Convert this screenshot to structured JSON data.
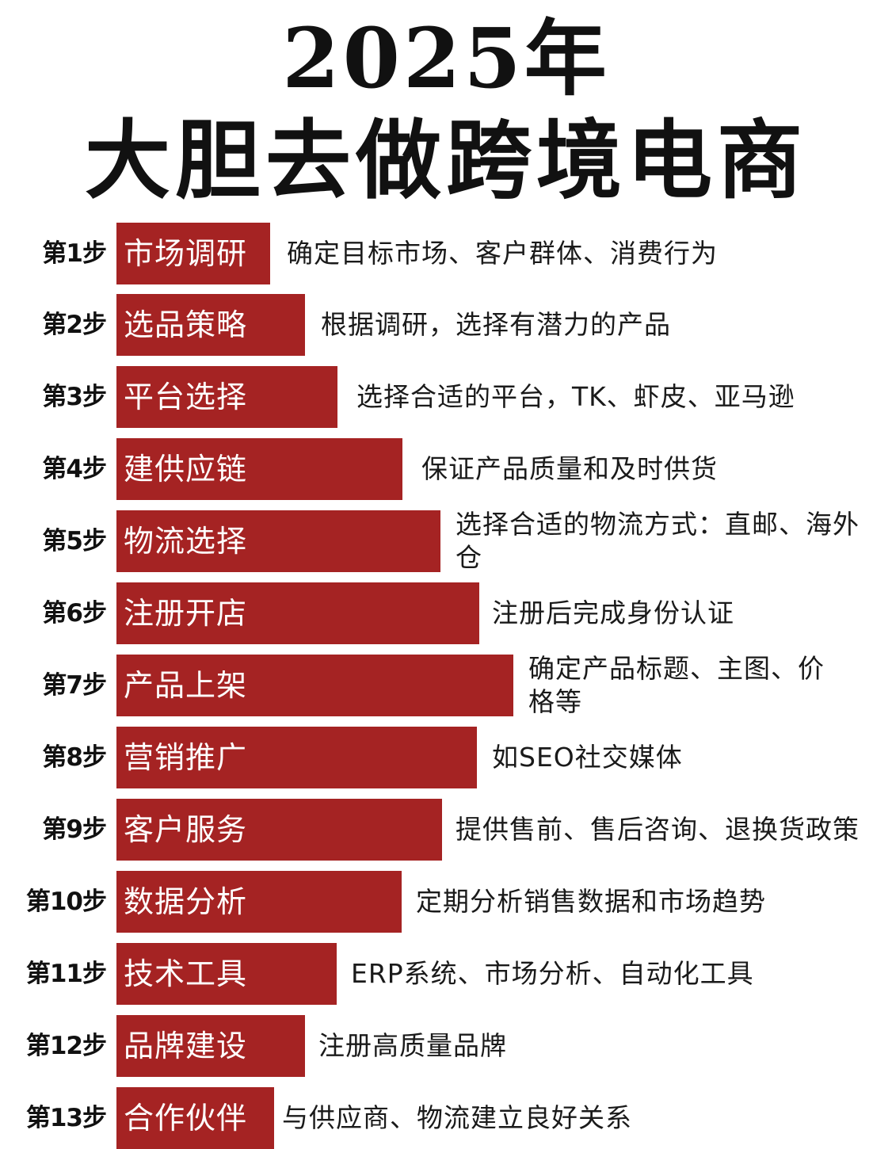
{
  "title": {
    "line1": "2025年",
    "line2": "大胆去做跨境电商"
  },
  "colors": {
    "bar": "#a52323",
    "title": "#111111",
    "text": "#1a1a1a"
  },
  "steps": [
    {
      "label": "第1步",
      "name": "市场调研",
      "desc": "确定目标市场、客户群体、消费行为"
    },
    {
      "label": "第2步",
      "name": "选品策略",
      "desc": "根据调研，选择有潜力的产品"
    },
    {
      "label": "第3步",
      "name": "平台选择",
      "desc": "选择合适的平台，TK、虾皮、亚马逊"
    },
    {
      "label": "第4步",
      "name": "建供应链",
      "desc": "保证产品质量和及时供货"
    },
    {
      "label": "第5步",
      "name": "物流选择",
      "desc": "选择合适的物流方式：直邮、海外仓"
    },
    {
      "label": "第6步",
      "name": "注册开店",
      "desc": "注册后完成身份认证"
    },
    {
      "label": "第7步",
      "name": "产品上架",
      "desc": "确定产品标题、主图、价格等"
    },
    {
      "label": "第8步",
      "name": "营销推广",
      "desc": "如SEO社交媒体"
    },
    {
      "label": "第9步",
      "name": "客户服务",
      "desc": "提供售前、售后咨询、退换货政策"
    },
    {
      "label": "第10步",
      "name": "数据分析",
      "desc": "定期分析销售数据和市场趋势"
    },
    {
      "label": "第11步",
      "name": "技术工具",
      "desc": "ERP系统、市场分析、自动化工具"
    },
    {
      "label": "第12步",
      "name": "品牌建设",
      "desc": "注册高质量品牌"
    },
    {
      "label": "第13步",
      "name": "合作伙伴",
      "desc": "与供应商、物流建立良好关系"
    }
  ]
}
